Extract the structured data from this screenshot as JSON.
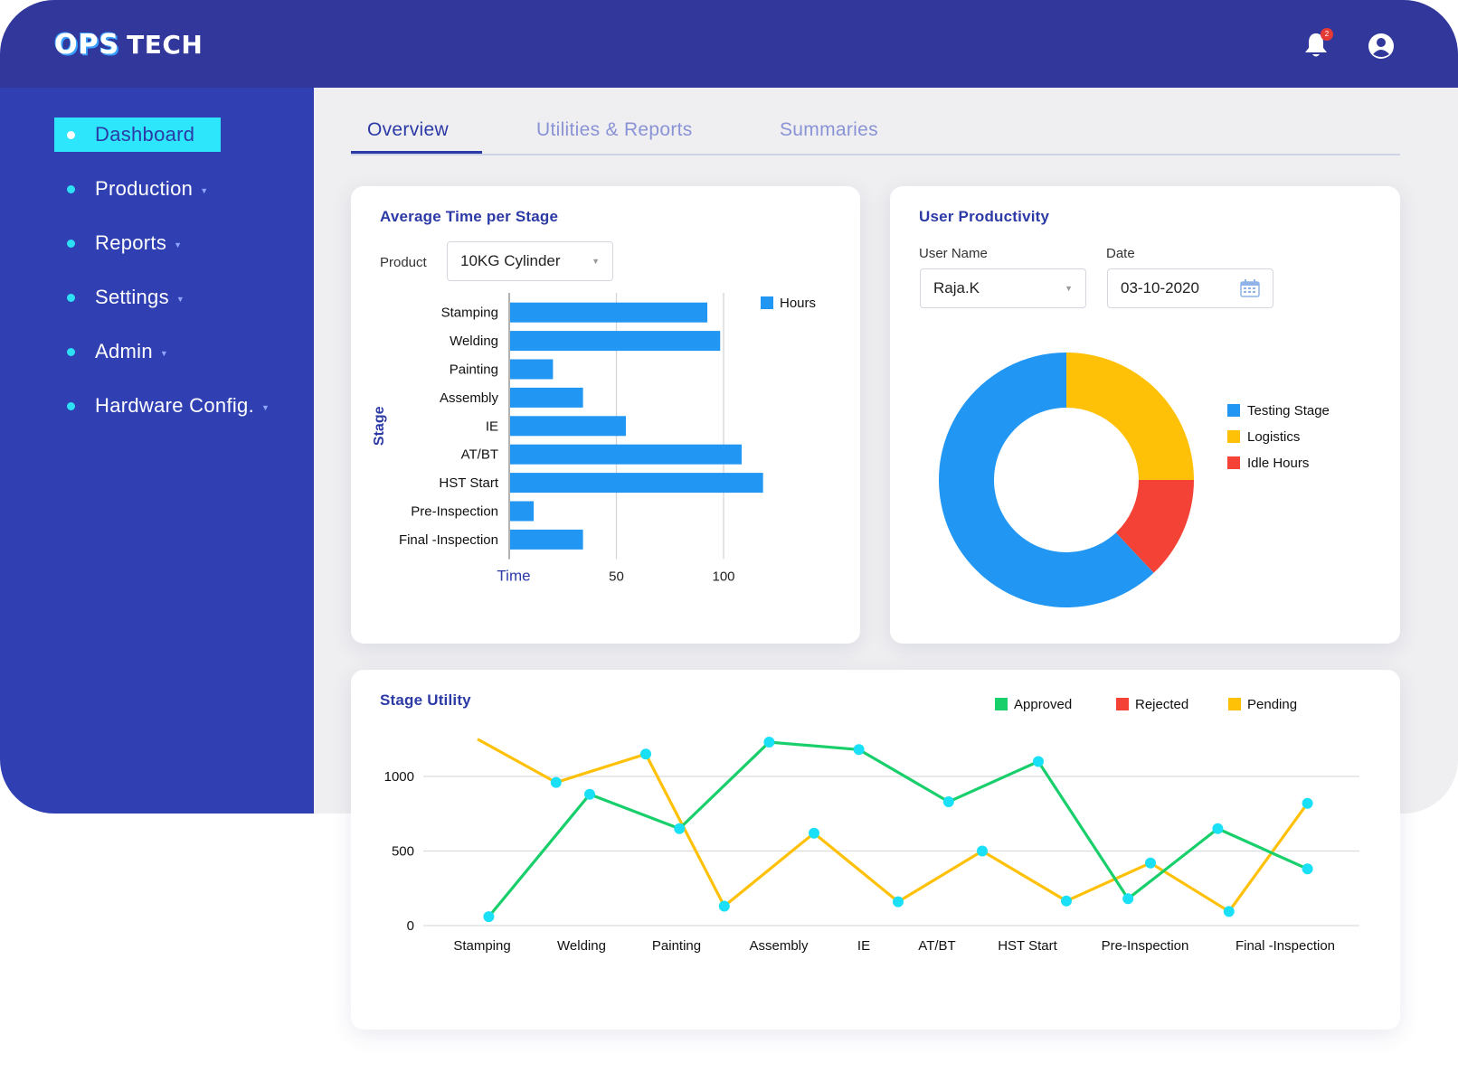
{
  "brand": {
    "logo_ops": "OPS",
    "logo_tech": "TECH"
  },
  "header": {
    "notification_count": "2"
  },
  "sidebar": {
    "items": [
      {
        "label": "Dashboard",
        "active": true,
        "has_caret": false
      },
      {
        "label": "Production",
        "active": false,
        "has_caret": true
      },
      {
        "label": "Reports",
        "active": false,
        "has_caret": true
      },
      {
        "label": "Settings",
        "active": false,
        "has_caret": true
      },
      {
        "label": "Admin",
        "active": false,
        "has_caret": true
      },
      {
        "label": "Hardware Config.",
        "active": false,
        "has_caret": true
      }
    ]
  },
  "tabs": [
    {
      "label": "Overview",
      "active": true
    },
    {
      "label": "Utilities & Reports",
      "active": false
    },
    {
      "label": "Summaries",
      "active": false
    }
  ],
  "avg_time_card": {
    "title": "Average Time per Stage",
    "product_label": "Product",
    "product_value": "10KG Cylinder"
  },
  "productivity_card": {
    "title": "User Productivity",
    "user_label": "User Name",
    "user_value": "Raja.K",
    "date_label": "Date",
    "date_value": "03-10-2020"
  },
  "utility_card": {
    "title": "Stage Utility"
  },
  "colors": {
    "bar": "#2196f3",
    "testing": "#2196f3",
    "logistics": "#ffc107",
    "idle": "#f44336",
    "approved": "#18cf6b",
    "rejected": "#f44336",
    "pending": "#ffc107",
    "marker": "#19e0f7"
  },
  "chart_data": [
    {
      "type": "bar",
      "orientation": "horizontal",
      "categories": [
        "Stamping",
        "Welding",
        "Painting",
        "Assembly",
        "IE",
        "AT/BT",
        "HST Start",
        "Pre-Inspection",
        "Final -Inspection"
      ],
      "series": [
        {
          "name": "Hours",
          "values": [
            92,
            98,
            20,
            34,
            54,
            108,
            118,
            11,
            34
          ]
        }
      ],
      "xlabel": "Time",
      "ylabel": "Stage",
      "xticks": [
        50,
        100
      ],
      "xlim": [
        0,
        130
      ],
      "grid": true,
      "legend": "top-right"
    },
    {
      "type": "pie",
      "donut": true,
      "labels": [
        "Testing Stage",
        "Logistics",
        "Idle Hours"
      ],
      "values": [
        62,
        25,
        13
      ],
      "legend": "right"
    },
    {
      "type": "line",
      "title": "Stage Utility",
      "categories": [
        "Stamping",
        "Welding",
        "Painting",
        "Assembly",
        "IE",
        "AT/BT",
        "HST Start",
        "Pre-Inspection",
        "Final -Inspection"
      ],
      "series": [
        {
          "name": "Approved",
          "x": [
            0.1,
            1.0,
            1.8,
            2.6,
            3.4,
            4.2,
            5.0,
            5.8,
            6.6,
            7.4
          ],
          "values": [
            60,
            880,
            650,
            1230,
            1180,
            830,
            1100,
            180,
            650,
            380
          ]
        },
        {
          "name": "Rejected",
          "x": [],
          "values": []
        },
        {
          "name": "Pending",
          "x": [
            0.0,
            0.7,
            1.5,
            2.2,
            3.0,
            3.75,
            4.5,
            5.25,
            6.0,
            6.7,
            7.4
          ],
          "values": [
            1250,
            960,
            1150,
            130,
            620,
            160,
            500,
            165,
            420,
            95,
            820
          ]
        }
      ],
      "yticks": [
        0,
        500,
        1000
      ],
      "ylim": [
        0,
        1300
      ],
      "grid": true,
      "legend": "top-right"
    }
  ]
}
